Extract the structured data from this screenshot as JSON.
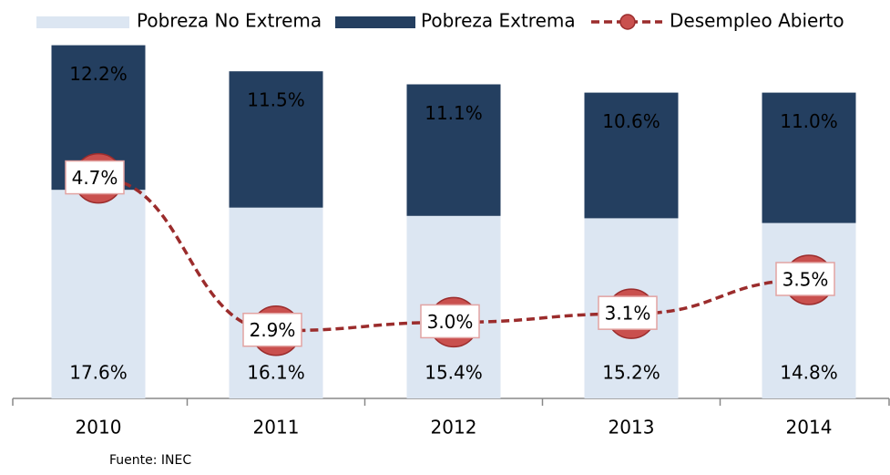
{
  "chart_data": {
    "type": "bar-line",
    "categories": [
      "2010",
      "2011",
      "2012",
      "2013",
      "2014"
    ],
    "series": [
      {
        "name": "Pobreza No Extrema",
        "type": "bar",
        "color": "#dce6f2",
        "values": [
          17.6,
          16.1,
          15.4,
          15.2,
          14.8
        ],
        "value_labels": [
          "17.6%",
          "16.1%",
          "15.4%",
          "15.2%",
          "14.8%"
        ]
      },
      {
        "name": "Pobreza Extrema",
        "type": "bar",
        "color": "#243f60",
        "values": [
          12.2,
          11.5,
          11.1,
          10.6,
          11.0
        ],
        "value_labels": [
          "12.2%",
          "11.5%",
          "11.1%",
          "10.6%",
          "11.0%"
        ]
      },
      {
        "name": "Desempleo Abierto",
        "type": "line",
        "axis": "y2",
        "color": "#9b2c2c",
        "values": [
          4.7,
          2.9,
          3.0,
          3.1,
          3.5
        ],
        "value_labels": [
          "4.7%",
          "2.9%",
          "3.0%",
          "3.1%",
          "3.5%"
        ]
      }
    ],
    "stacked": true,
    "ylim": [
      0,
      30
    ],
    "y2lim": [
      2.1,
      6.3
    ],
    "legend": "top",
    "source": "Fuente: INEC"
  }
}
